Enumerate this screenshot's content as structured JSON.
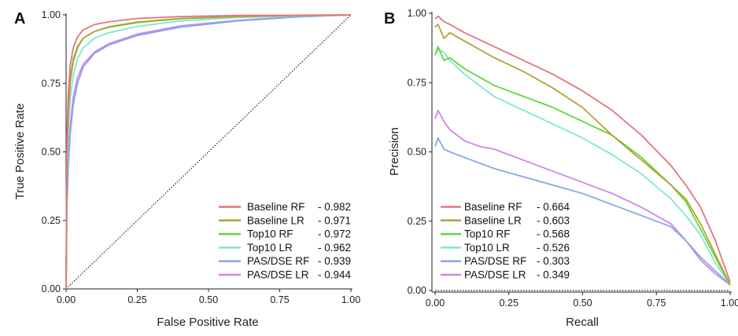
{
  "chart_data": [
    {
      "panel_label": "A",
      "type": "line",
      "xlabel": "False Positive Rate",
      "ylabel": "True Positive Rate",
      "xlim": [
        0,
        1
      ],
      "ylim": [
        0,
        1
      ],
      "x_ticks": [
        "0.00",
        "0.25",
        "0.50",
        "0.75",
        "1.00"
      ],
      "y_ticks": [
        "0.00",
        "0.25",
        "0.50",
        "0.75",
        "1.00"
      ],
      "grid": false,
      "legend_position": "bottom-right",
      "reference_line": {
        "style": "dotted",
        "from": [
          0,
          0
        ],
        "to": [
          1,
          1
        ]
      },
      "series": [
        {
          "name": "Baseline RF",
          "value": "- 0.982",
          "color": "#e8737f",
          "points": [
            [
              0,
              0
            ],
            [
              0.003,
              0.55
            ],
            [
              0.008,
              0.72
            ],
            [
              0.015,
              0.82
            ],
            [
              0.025,
              0.88
            ],
            [
              0.04,
              0.92
            ],
            [
              0.06,
              0.945
            ],
            [
              0.1,
              0.965
            ],
            [
              0.15,
              0.975
            ],
            [
              0.25,
              0.987
            ],
            [
              0.4,
              0.994
            ],
            [
              0.6,
              0.998
            ],
            [
              0.8,
              0.999
            ],
            [
              1,
              1
            ]
          ]
        },
        {
          "name": "Baseline LR",
          "value": "- 0.971",
          "color": "#b0a233",
          "points": [
            [
              0,
              0
            ],
            [
              0.003,
              0.48
            ],
            [
              0.008,
              0.65
            ],
            [
              0.015,
              0.76
            ],
            [
              0.025,
              0.83
            ],
            [
              0.04,
              0.88
            ],
            [
              0.06,
              0.915
            ],
            [
              0.1,
              0.94
            ],
            [
              0.15,
              0.955
            ],
            [
              0.25,
              0.972
            ],
            [
              0.4,
              0.986
            ],
            [
              0.6,
              0.994
            ],
            [
              0.8,
              0.998
            ],
            [
              1,
              1
            ]
          ]
        },
        {
          "name": "Top10 RF",
          "value": "- 0.972",
          "color": "#5fd93a",
          "points": [
            [
              0,
              0
            ],
            [
              0.003,
              0.5
            ],
            [
              0.008,
              0.67
            ],
            [
              0.015,
              0.77
            ],
            [
              0.025,
              0.84
            ],
            [
              0.04,
              0.885
            ],
            [
              0.06,
              0.915
            ],
            [
              0.1,
              0.94
            ],
            [
              0.15,
              0.957
            ],
            [
              0.25,
              0.974
            ],
            [
              0.4,
              0.987
            ],
            [
              0.6,
              0.995
            ],
            [
              0.8,
              0.998
            ],
            [
              1,
              1
            ]
          ]
        },
        {
          "name": "Top10 LR",
          "value": "- 0.962",
          "color": "#7de8cf",
          "points": [
            [
              0,
              0
            ],
            [
              0.003,
              0.42
            ],
            [
              0.008,
              0.58
            ],
            [
              0.015,
              0.7
            ],
            [
              0.025,
              0.78
            ],
            [
              0.04,
              0.84
            ],
            [
              0.06,
              0.88
            ],
            [
              0.1,
              0.915
            ],
            [
              0.15,
              0.935
            ],
            [
              0.25,
              0.958
            ],
            [
              0.4,
              0.978
            ],
            [
              0.6,
              0.99
            ],
            [
              0.8,
              0.996
            ],
            [
              1,
              1
            ]
          ]
        },
        {
          "name": "PAS/DSE RF",
          "value": "- 0.939",
          "color": "#86a8e6",
          "points": [
            [
              0,
              0
            ],
            [
              0.003,
              0.3
            ],
            [
              0.008,
              0.45
            ],
            [
              0.015,
              0.57
            ],
            [
              0.025,
              0.67
            ],
            [
              0.04,
              0.75
            ],
            [
              0.06,
              0.81
            ],
            [
              0.1,
              0.86
            ],
            [
              0.15,
              0.89
            ],
            [
              0.25,
              0.925
            ],
            [
              0.4,
              0.955
            ],
            [
              0.6,
              0.978
            ],
            [
              0.8,
              0.992
            ],
            [
              1,
              1
            ]
          ]
        },
        {
          "name": "PAS/DSE LR",
          "value": "- 0.944",
          "color": "#cf86ea",
          "points": [
            [
              0,
              0
            ],
            [
              0.003,
              0.33
            ],
            [
              0.008,
              0.48
            ],
            [
              0.015,
              0.6
            ],
            [
              0.025,
              0.7
            ],
            [
              0.04,
              0.77
            ],
            [
              0.06,
              0.82
            ],
            [
              0.1,
              0.865
            ],
            [
              0.15,
              0.895
            ],
            [
              0.25,
              0.93
            ],
            [
              0.4,
              0.96
            ],
            [
              0.6,
              0.98
            ],
            [
              0.8,
              0.993
            ],
            [
              1,
              1
            ]
          ]
        }
      ]
    },
    {
      "panel_label": "B",
      "type": "line",
      "xlabel": "Recall",
      "ylabel": "Precision",
      "xlim": [
        0,
        1
      ],
      "ylim": [
        0,
        1
      ],
      "x_ticks": [
        "0.00",
        "0.25",
        "0.50",
        "0.75",
        "1.00"
      ],
      "y_ticks": [
        "0.00",
        "0.25",
        "0.50",
        "0.75",
        "1.00"
      ],
      "grid": false,
      "legend_position": "bottom-left",
      "reference_line": {
        "style": "dotted",
        "from": [
          0,
          0
        ],
        "to": [
          1,
          0
        ]
      },
      "series": [
        {
          "name": "Baseline RF",
          "value": "- 0.664",
          "color": "#e8737f",
          "points": [
            [
              0,
              0.98
            ],
            [
              0.01,
              0.99
            ],
            [
              0.03,
              0.97
            ],
            [
              0.05,
              0.96
            ],
            [
              0.1,
              0.93
            ],
            [
              0.2,
              0.88
            ],
            [
              0.3,
              0.83
            ],
            [
              0.4,
              0.78
            ],
            [
              0.5,
              0.72
            ],
            [
              0.6,
              0.65
            ],
            [
              0.7,
              0.56
            ],
            [
              0.8,
              0.45
            ],
            [
              0.85,
              0.38
            ],
            [
              0.9,
              0.3
            ],
            [
              0.95,
              0.18
            ],
            [
              1,
              0.03
            ]
          ]
        },
        {
          "name": "Baseline LR",
          "value": "- 0.603",
          "color": "#b0a233",
          "points": [
            [
              0,
              0.95
            ],
            [
              0.01,
              0.96
            ],
            [
              0.03,
              0.91
            ],
            [
              0.05,
              0.93
            ],
            [
              0.1,
              0.9
            ],
            [
              0.2,
              0.84
            ],
            [
              0.3,
              0.79
            ],
            [
              0.4,
              0.73
            ],
            [
              0.5,
              0.66
            ],
            [
              0.6,
              0.56
            ],
            [
              0.7,
              0.47
            ],
            [
              0.8,
              0.38
            ],
            [
              0.85,
              0.33
            ],
            [
              0.9,
              0.24
            ],
            [
              0.95,
              0.13
            ],
            [
              1,
              0.02
            ]
          ]
        },
        {
          "name": "Top10 RF",
          "value": "- 0.568",
          "color": "#5fd93a",
          "points": [
            [
              0,
              0.85
            ],
            [
              0.01,
              0.88
            ],
            [
              0.03,
              0.83
            ],
            [
              0.05,
              0.84
            ],
            [
              0.1,
              0.8
            ],
            [
              0.2,
              0.74
            ],
            [
              0.3,
              0.7
            ],
            [
              0.4,
              0.66
            ],
            [
              0.5,
              0.61
            ],
            [
              0.6,
              0.56
            ],
            [
              0.7,
              0.48
            ],
            [
              0.8,
              0.38
            ],
            [
              0.85,
              0.32
            ],
            [
              0.9,
              0.22
            ],
            [
              0.95,
              0.12
            ],
            [
              1,
              0.02
            ]
          ]
        },
        {
          "name": "Top10 LR",
          "value": "- 0.526",
          "color": "#7de8cf",
          "points": [
            [
              0,
              0.85
            ],
            [
              0.01,
              0.87
            ],
            [
              0.03,
              0.86
            ],
            [
              0.05,
              0.83
            ],
            [
              0.1,
              0.78
            ],
            [
              0.2,
              0.7
            ],
            [
              0.3,
              0.65
            ],
            [
              0.4,
              0.6
            ],
            [
              0.5,
              0.55
            ],
            [
              0.6,
              0.49
            ],
            [
              0.7,
              0.42
            ],
            [
              0.8,
              0.33
            ],
            [
              0.85,
              0.27
            ],
            [
              0.9,
              0.2
            ],
            [
              0.95,
              0.1
            ],
            [
              1,
              0.02
            ]
          ]
        },
        {
          "name": "PAS/DSE RF",
          "value": "- 0.303",
          "color": "#86a8e6",
          "points": [
            [
              0,
              0.52
            ],
            [
              0.01,
              0.55
            ],
            [
              0.03,
              0.51
            ],
            [
              0.05,
              0.5
            ],
            [
              0.1,
              0.48
            ],
            [
              0.2,
              0.44
            ],
            [
              0.3,
              0.41
            ],
            [
              0.4,
              0.38
            ],
            [
              0.5,
              0.35
            ],
            [
              0.6,
              0.31
            ],
            [
              0.7,
              0.27
            ],
            [
              0.8,
              0.23
            ],
            [
              0.85,
              0.18
            ],
            [
              0.9,
              0.12
            ],
            [
              0.95,
              0.07
            ],
            [
              1,
              0.02
            ]
          ]
        },
        {
          "name": "PAS/DSE LR",
          "value": "- 0.349",
          "color": "#cf86ea",
          "points": [
            [
              0,
              0.62
            ],
            [
              0.01,
              0.65
            ],
            [
              0.03,
              0.61
            ],
            [
              0.05,
              0.58
            ],
            [
              0.1,
              0.54
            ],
            [
              0.15,
              0.52
            ],
            [
              0.2,
              0.51
            ],
            [
              0.3,
              0.47
            ],
            [
              0.4,
              0.43
            ],
            [
              0.5,
              0.39
            ],
            [
              0.6,
              0.35
            ],
            [
              0.7,
              0.3
            ],
            [
              0.8,
              0.24
            ],
            [
              0.85,
              0.18
            ],
            [
              0.9,
              0.11
            ],
            [
              0.95,
              0.06
            ],
            [
              1,
              0.02
            ]
          ]
        }
      ]
    }
  ]
}
